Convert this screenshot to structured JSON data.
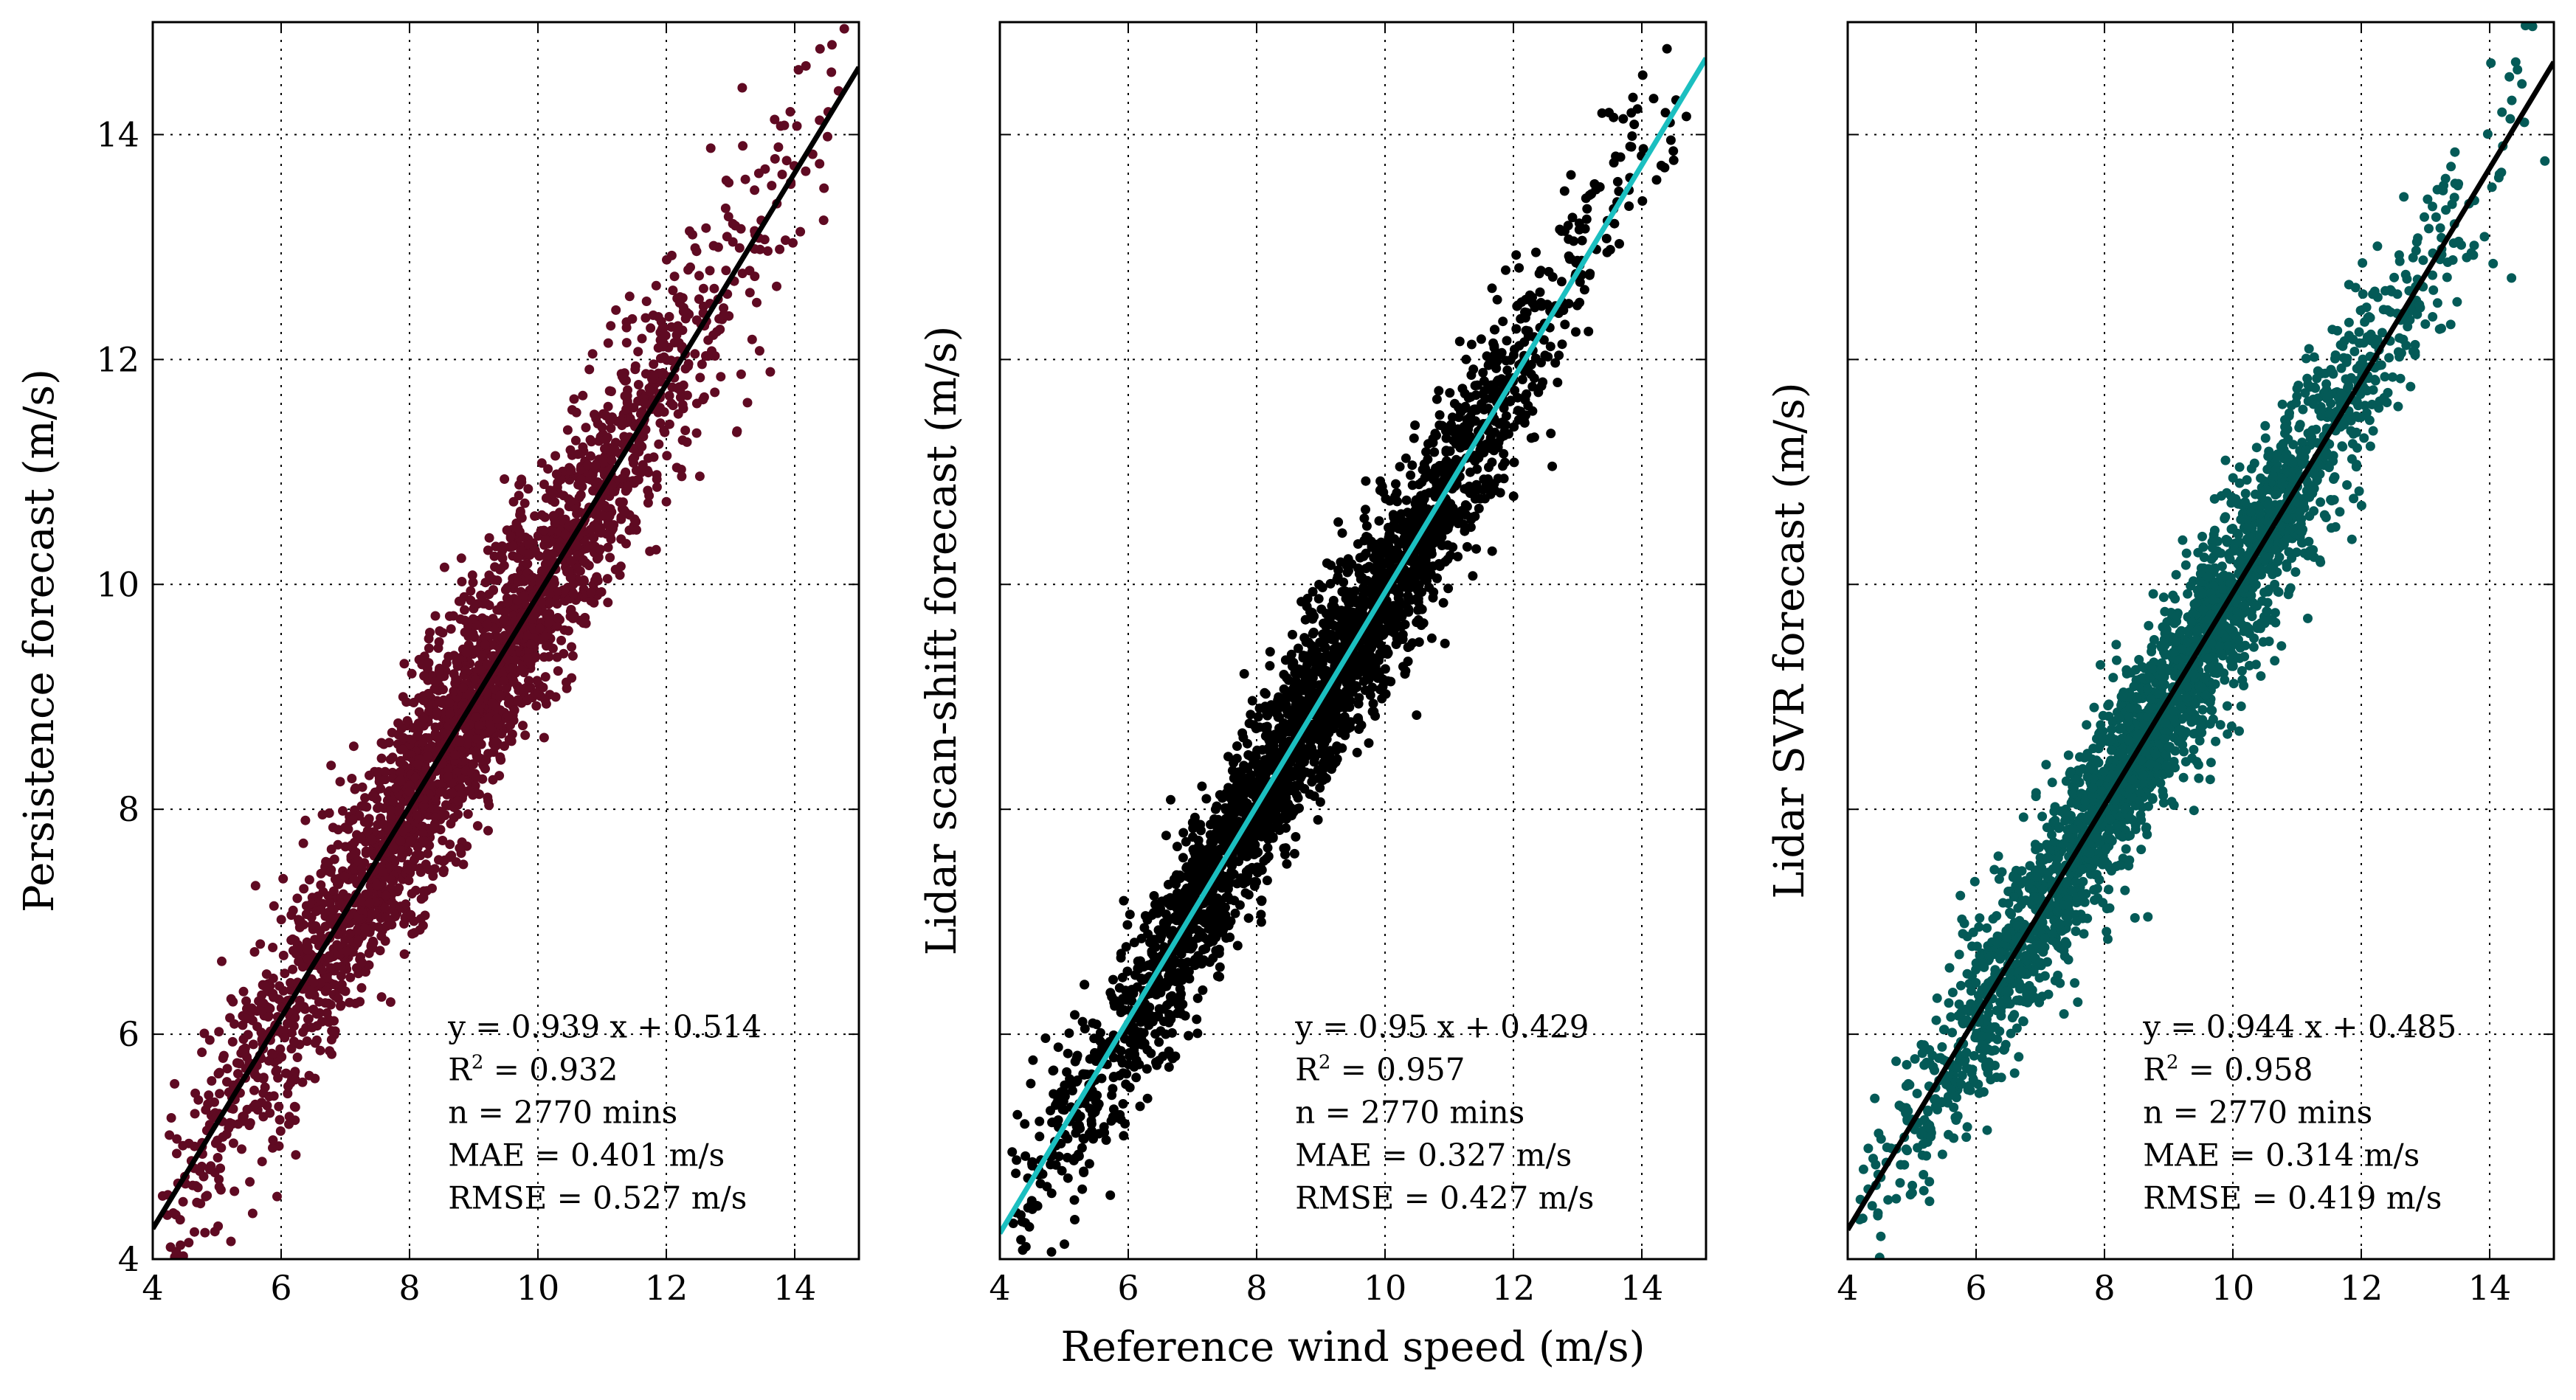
{
  "chart_data": [
    {
      "type": "scatter",
      "ylabel": "Persistence forecast (m/s)",
      "xlabel": "",
      "xlim": [
        4,
        15
      ],
      "ylim": [
        4,
        15
      ],
      "xticks": [
        "4",
        "6",
        "8",
        "10",
        "12",
        "14"
      ],
      "yticks": [
        "4",
        "6",
        "8",
        "10",
        "12",
        "14"
      ],
      "show_y_tick_labels": true,
      "grid": true,
      "point_color": "#5f0a22",
      "line_color": "#000000",
      "fit": {
        "slope": 0.939,
        "intercept": 0.514
      },
      "spread": 0.52,
      "n_points": 2770,
      "stats": {
        "equation": "y = 0.939 x + 0.514",
        "r2_prefix": "R",
        "r2_sup": "2",
        "r2_value": " = 0.932",
        "n": "n = 2770 mins",
        "mae": "MAE = 0.401 m/s",
        "rmse": "RMSE = 0.527 m/s"
      }
    },
    {
      "type": "scatter",
      "ylabel": "Lidar scan-shift forecast (m/s)",
      "xlabel": "Reference wind speed (m/s)",
      "xlim": [
        4,
        15
      ],
      "ylim": [
        4,
        15
      ],
      "xticks": [
        "4",
        "6",
        "8",
        "10",
        "12",
        "14"
      ],
      "yticks": [
        "4",
        "6",
        "8",
        "10",
        "12",
        "14"
      ],
      "show_y_tick_labels": false,
      "grid": true,
      "point_color": "#000000",
      "line_color": "#1bbfc0",
      "fit": {
        "slope": 0.95,
        "intercept": 0.429
      },
      "spread": 0.42,
      "n_points": 2770,
      "stats": {
        "equation": "y = 0.95 x + 0.429",
        "r2_prefix": "R",
        "r2_sup": "2",
        "r2_value": " = 0.957",
        "n": "n = 2770 mins",
        "mae": "MAE = 0.327 m/s",
        "rmse": "RMSE = 0.427 m/s"
      }
    },
    {
      "type": "scatter",
      "ylabel": "Lidar SVR forecast (m/s)",
      "xlabel": "",
      "xlim": [
        4,
        15
      ],
      "ylim": [
        4,
        15
      ],
      "xticks": [
        "4",
        "6",
        "8",
        "10",
        "12",
        "14"
      ],
      "yticks": [
        "4",
        "6",
        "8",
        "10",
        "12",
        "14"
      ],
      "show_y_tick_labels": false,
      "grid": true,
      "point_color": "#045a57",
      "line_color": "#000000",
      "fit": {
        "slope": 0.944,
        "intercept": 0.485
      },
      "spread": 0.41,
      "n_points": 2770,
      "stats": {
        "equation": "y = 0.944 x + 0.485",
        "r2_prefix": "R",
        "r2_sup": "2",
        "r2_value": " = 0.958",
        "n": "n = 2770 mins",
        "mae": "MAE = 0.314 m/s",
        "rmse": "RMSE = 0.419 m/s"
      }
    }
  ]
}
